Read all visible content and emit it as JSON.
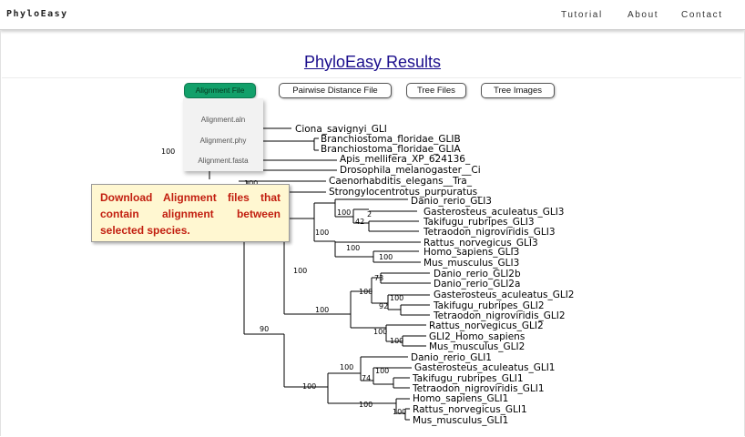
{
  "nav": {
    "brand": "PhyloEasy",
    "links": [
      "Tutorial",
      "About",
      "Contact"
    ]
  },
  "page_title": "PhyloEasy Results",
  "toolbar": {
    "alignment_file": "Alignment File",
    "pairwise_distance_file": "Pairwise Distance File",
    "tree_files": "Tree Files",
    "tree_images": "Tree Images"
  },
  "alignment_menu": [
    "Alignment.aln",
    "Alignment.phy",
    "Alignment.fasta"
  ],
  "tooltip": {
    "text": "Download Alignment files that contain alignment between selected species."
  },
  "colors": {
    "accent_green": "#12a06a",
    "title_link": "#1a0d8c",
    "tooltip_text": "#c21e0f",
    "tooltip_bg": "#fff7d1"
  },
  "tree": {
    "leaves": [
      "Ciona_savignyi_GLI",
      "Branchiostoma_floridae_GLIB",
      "Branchiostoma_floridae_GLIA",
      "Apis_mellifera_XP_624136_",
      "Drosophila_melanogaster__Ci",
      "Caenorhabditis_elegans__Tra_",
      "Strongylocentrotus_purpuratus_",
      "Danio_rerio_GLI3",
      "Gasterosteus_aculeatus_GLI3",
      "Takifugu_rubripes_GLI3",
      "Tetraodon_nigroviridis_GLI3",
      "Rattus_norvegicus_GLI3",
      "Homo_sapiens_GLI3",
      "Mus_musculus_GLI3",
      "Danio_rerio_GLI2b",
      "Danio_rerio_GLI2a",
      "Gasterosteus_aculeatus_GLI2",
      "Takifugu_rubripes_GLI2",
      "Tetraodon_nigroviridis_GLI2",
      "Rattus_norvegicus_GLI2",
      "GLI2_Homo_sapiens",
      "Mus_musculus_GLI2",
      "Danio_rerio_GLI1",
      "Gasterosteus_aculeatus_GLI1",
      "Takifugu_rubripes_GLI1",
      "Tetraodon_nigroviridis_GLI1",
      "Homo_sapiens_GLI1",
      "Rattus_norvegicus_GLI1",
      "Mus_musculus_GLI1"
    ],
    "support": {
      "root": "100",
      "echinoderm": "100",
      "gli3_main": "100",
      "gli3_fish": "100",
      "gli3_takifugu": "2",
      "gli3_fish_inner": "42",
      "gli3_mammals": "100",
      "gli3_homo_mus": "100",
      "gli23": "100",
      "gli2_main": "100",
      "gli2_danio": "73",
      "gli2_fish": "100",
      "gli2_fish_inner": "100",
      "gli2_fugu_tetra": "92",
      "gli2_mammals": "100",
      "gli2_homo_mus": "100",
      "vertebrate": "90",
      "gli1_main": "100",
      "gli1_fish_main": "100",
      "gli1_fish": "100",
      "gli1_fugu_tetra": "74",
      "gli1_mammals": "100",
      "gli1_rattus_mus": "100"
    }
  }
}
